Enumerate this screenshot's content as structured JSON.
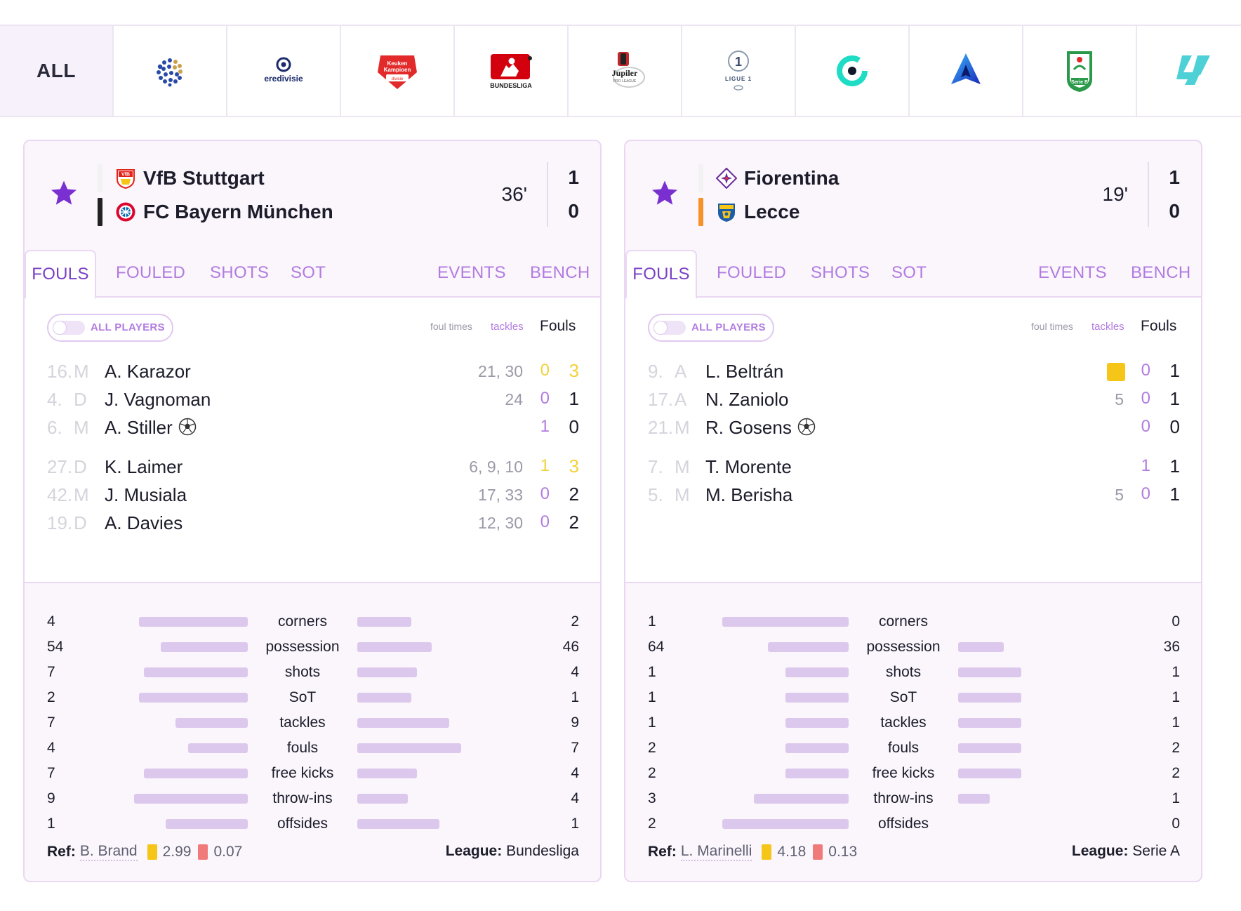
{
  "league_bar": {
    "all_label": "ALL",
    "leagues": [
      {
        "name": "uefa-icon"
      },
      {
        "name": "eredivisie-icon",
        "text": "eredivisie"
      },
      {
        "name": "keuken-kampioen-icon",
        "text": "Keuken Kampioen"
      },
      {
        "name": "bundesliga-icon",
        "text": "BUNDESLIGA"
      },
      {
        "name": "jupiler-icon",
        "text": "Jupiler"
      },
      {
        "name": "ligue1-icon",
        "text": "LIGUE 1"
      },
      {
        "name": "liga-portugal-icon"
      },
      {
        "name": "serie-a-icon"
      },
      {
        "name": "serie-b-icon",
        "text": "Serie B"
      },
      {
        "name": "laliga-icon"
      }
    ]
  },
  "matches": [
    {
      "home": {
        "name": "VfB Stuttgart",
        "bar_color": "#f2f2f2"
      },
      "away": {
        "name": "FC Bayern München",
        "bar_color": "#222222"
      },
      "minute": "36'",
      "score_home": "1",
      "score_away": "0",
      "tabs": {
        "fouls": "FOULS",
        "fouled": "FOULED",
        "shots": "SHOTS",
        "sot": "SOT",
        "events": "EVENTS",
        "bench": "BENCH"
      },
      "toggle_label": "ALL PLAYERS",
      "col_foul_times": "foul times",
      "col_tackles": "tackles",
      "col_fouls": "Fouls",
      "players": [
        {
          "num": "16.",
          "pos": "M",
          "name": "A. Karazor",
          "times": "21, 30",
          "tackles": "0",
          "fouls": "3",
          "hl": true
        },
        {
          "num": "4.",
          "pos": "D",
          "name": "J. Vagnoman",
          "times": "24",
          "tackles": "0",
          "fouls": "1"
        },
        {
          "num": "6.",
          "pos": "M",
          "name": "A. Stiller",
          "times": "",
          "tackles": "1",
          "fouls": "0",
          "ball": true
        },
        {
          "num": "27.",
          "pos": "D",
          "name": "K. Laimer",
          "times": "6, 9, 10",
          "tackles": "1",
          "fouls": "3",
          "hl": true
        },
        {
          "num": "42.",
          "pos": "M",
          "name": "J. Musiala",
          "times": "17, 33",
          "tackles": "0",
          "fouls": "2"
        },
        {
          "num": "19.",
          "pos": "D",
          "name": "A. Davies",
          "times": "12, 30",
          "tackles": "0",
          "fouls": "2"
        }
      ],
      "stats": [
        {
          "label": "corners",
          "home": "4",
          "away": "2",
          "home_frac": 0.86,
          "away_frac": 0.43
        },
        {
          "label": "possession",
          "home": "54",
          "away": "46",
          "home_frac": 0.69,
          "away_frac": 0.59
        },
        {
          "label": "shots",
          "home": "7",
          "away": "4",
          "home_frac": 0.82,
          "away_frac": 0.47
        },
        {
          "label": "SoT",
          "home": "2",
          "away": "1",
          "home_frac": 0.86,
          "away_frac": 0.43
        },
        {
          "label": "tackles",
          "home": "7",
          "away": "9",
          "home_frac": 0.57,
          "away_frac": 0.73
        },
        {
          "label": "fouls",
          "home": "4",
          "away": "7",
          "home_frac": 0.47,
          "away_frac": 0.82
        },
        {
          "label": "free kicks",
          "home": "7",
          "away": "4",
          "home_frac": 0.82,
          "away_frac": 0.47
        },
        {
          "label": "throw-ins",
          "home": "9",
          "away": "4",
          "home_frac": 0.9,
          "away_frac": 0.4
        },
        {
          "label": "offsides",
          "home": "1",
          "away": "1",
          "home_frac": 0.65,
          "away_frac": 0.65
        }
      ],
      "ref_label": "Ref:",
      "ref_name": "B. Brand",
      "ref_yellow": "2.99",
      "ref_red": "0.07",
      "league_label": "League:",
      "league_name": "Bundesliga"
    },
    {
      "home": {
        "name": "Fiorentina",
        "bar_color": "#f2f2f2"
      },
      "away": {
        "name": "Lecce",
        "bar_color": "#f5922a"
      },
      "minute": "19'",
      "score_home": "1",
      "score_away": "0",
      "tabs": {
        "fouls": "FOULS",
        "fouled": "FOULED",
        "shots": "SHOTS",
        "sot": "SOT",
        "events": "EVENTS",
        "bench": "BENCH"
      },
      "toggle_label": "ALL PLAYERS",
      "col_foul_times": "foul times",
      "col_tackles": "tackles",
      "col_fouls": "Fouls",
      "players": [
        {
          "num": "9.",
          "pos": "A",
          "name": "L. Beltrán",
          "times": "",
          "tackles": "0",
          "fouls": "1",
          "yellow": true
        },
        {
          "num": "17.",
          "pos": "A",
          "name": "N. Zaniolo",
          "times": "5",
          "tackles": "0",
          "fouls": "1"
        },
        {
          "num": "21.",
          "pos": "M",
          "name": "R. Gosens",
          "times": "",
          "tackles": "0",
          "fouls": "0",
          "ball": true
        },
        {
          "num": "7.",
          "pos": "M",
          "name": "T. Morente",
          "times": "",
          "tackles": "1",
          "fouls": "1"
        },
        {
          "num": "5.",
          "pos": "M",
          "name": "M. Berisha",
          "times": "5",
          "tackles": "0",
          "fouls": "1"
        }
      ],
      "stats": [
        {
          "label": "corners",
          "home": "1",
          "away": "0",
          "home_frac": 1.0,
          "away_frac": 0.0
        },
        {
          "label": "possession",
          "home": "64",
          "away": "36",
          "home_frac": 0.64,
          "away_frac": 0.36
        },
        {
          "label": "shots",
          "home": "1",
          "away": "1",
          "home_frac": 0.5,
          "away_frac": 0.5
        },
        {
          "label": "SoT",
          "home": "1",
          "away": "1",
          "home_frac": 0.5,
          "away_frac": 0.5
        },
        {
          "label": "tackles",
          "home": "1",
          "away": "1",
          "home_frac": 0.5,
          "away_frac": 0.5
        },
        {
          "label": "fouls",
          "home": "2",
          "away": "2",
          "home_frac": 0.5,
          "away_frac": 0.5
        },
        {
          "label": "free kicks",
          "home": "2",
          "away": "2",
          "home_frac": 0.5,
          "away_frac": 0.5
        },
        {
          "label": "throw-ins",
          "home": "3",
          "away": "1",
          "home_frac": 0.75,
          "away_frac": 0.25
        },
        {
          "label": "offsides",
          "home": "2",
          "away": "0",
          "home_frac": 1.0,
          "away_frac": 0.0
        }
      ],
      "ref_label": "Ref:",
      "ref_name": "L. Marinelli",
      "ref_yellow": "4.18",
      "ref_red": "0.13",
      "league_label": "League:",
      "league_name": "Serie A"
    }
  ],
  "colors": {
    "accent": "#7a3fc4",
    "tab": "#b27be0",
    "star": "#7a2fd0",
    "bar": "#dcc8ec"
  }
}
